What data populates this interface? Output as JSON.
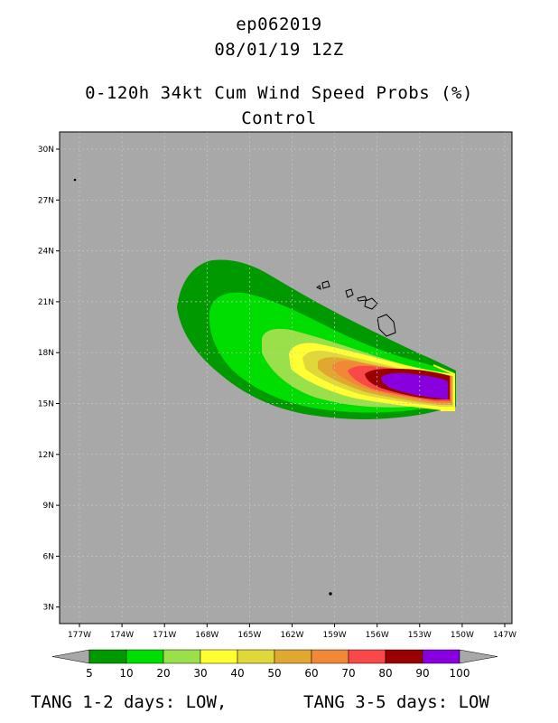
{
  "header": {
    "storm_id": "ep062019",
    "datetime": "08/01/19 12Z",
    "product": "0-120h 34kt Cum Wind Speed Probs (%)",
    "run": "Control"
  },
  "map": {
    "lon_labels": [
      "177W",
      "174W",
      "171W",
      "168W",
      "165W",
      "162W",
      "159W",
      "156W",
      "153W",
      "150W",
      "147W"
    ],
    "lat_labels": [
      "30N",
      "27N",
      "24N",
      "21N",
      "18N",
      "15N",
      "12N",
      "9N",
      "6N",
      "3N"
    ],
    "background_color": "#a8a8a8"
  },
  "colorbar": {
    "labels": [
      "5",
      "10",
      "20",
      "30",
      "40",
      "50",
      "60",
      "70",
      "80",
      "90",
      "100"
    ],
    "colors": [
      "#009900",
      "#00dd00",
      "#99e04a",
      "#ffff33",
      "#e0d83a",
      "#e0a830",
      "#f08838",
      "#f84848",
      "#990000",
      "#8800dd"
    ]
  },
  "footer": {
    "left": "TANG 1-2 days:  LOW,",
    "right": "TANG 3-5 days:  LOW"
  }
}
